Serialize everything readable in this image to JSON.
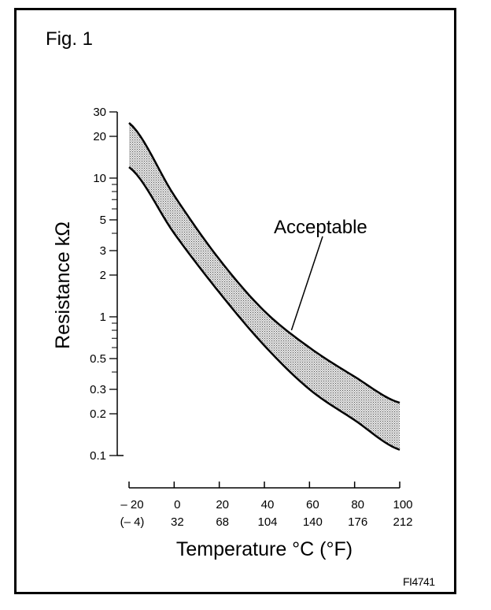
{
  "figure": {
    "label": "Fig. 1",
    "code": "FI4741"
  },
  "chart_data": {
    "type": "area",
    "title": "",
    "xlabel": "Temperature °C (°F)",
    "ylabel": "Resistance kΩ",
    "y_scale": "log",
    "xlim": [
      -20,
      100
    ],
    "ylim": [
      0.1,
      30
    ],
    "x_ticks": [
      {
        "c": "– 20",
        "f": "(– 4)"
      },
      {
        "c": "0",
        "f": "32"
      },
      {
        "c": "20",
        "f": "68"
      },
      {
        "c": "40",
        "f": "104"
      },
      {
        "c": "60",
        "f": "140"
      },
      {
        "c": "80",
        "f": "176"
      },
      {
        "c": "100",
        "f": "212"
      }
    ],
    "x_tick_values": [
      -20,
      0,
      20,
      40,
      60,
      80,
      100
    ],
    "y_tick_labels": [
      "30",
      "20",
      "10",
      "5",
      "3",
      "2",
      "1",
      "0.5",
      "0.3",
      "0.2",
      "0.1"
    ],
    "y_tick_values": [
      30,
      20,
      10,
      5,
      3,
      2,
      1,
      0.5,
      0.3,
      0.2,
      0.1
    ],
    "y_minor_ticks": [
      9,
      8,
      7,
      6,
      4,
      0.9,
      0.8,
      0.7,
      0.6,
      0.4
    ],
    "x": [
      -20,
      0,
      20,
      40,
      60,
      80,
      100
    ],
    "series": [
      {
        "values_upper": [
          25,
          7.5,
          2.6,
          1.1,
          0.6,
          0.37,
          0.24
        ],
        "values_lower": [
          12,
          4.0,
          1.5,
          0.62,
          0.3,
          0.18,
          0.11
        ]
      }
    ],
    "annotations": [
      {
        "text": "Acceptable",
        "points_to": {
          "x": 52,
          "y": 0.8
        }
      }
    ],
    "colors": {
      "band": "#c8c8c8",
      "line": "#000000"
    }
  }
}
